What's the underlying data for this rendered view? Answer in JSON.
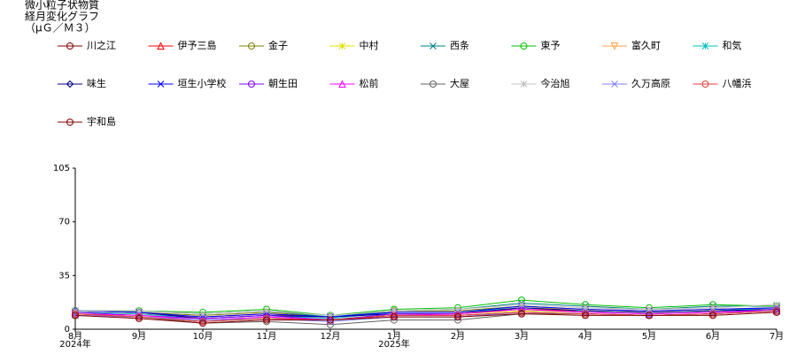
{
  "chart_data": {
    "type": "line",
    "title": [
      "微小粒子状物質",
      "経月変化グラフ",
      "（μＧ／Ｍ３）"
    ],
    "categories": [
      "8月",
      "9月",
      "10月",
      "11月",
      "12月",
      "1月",
      "2月",
      "3月",
      "4月",
      "5月",
      "6月",
      "7月"
    ],
    "category_years": [
      "2024年",
      null,
      null,
      null,
      null,
      "2025年",
      null,
      null,
      null,
      null,
      null,
      null
    ],
    "ylim": [
      0,
      105
    ],
    "yticks": [
      0,
      35,
      70,
      105
    ],
    "grid": false,
    "series": [
      {
        "name": "川之江",
        "color": "#800000",
        "marker": "circle",
        "values": [
          10,
          8,
          5,
          7,
          6,
          9,
          9,
          11,
          10,
          9,
          10,
          12
        ]
      },
      {
        "name": "伊予三島",
        "color": "#ff0000",
        "marker": "triangle",
        "values": [
          11,
          10,
          8,
          10,
          8,
          11,
          11,
          13,
          12,
          11,
          12,
          14
        ]
      },
      {
        "name": "金子",
        "color": "#808000",
        "marker": "circle",
        "values": [
          12,
          11,
          9,
          11,
          8,
          12,
          12,
          15,
          13,
          12,
          13,
          14
        ]
      },
      {
        "name": "中村",
        "color": "#e0e000",
        "marker": "star",
        "values": [
          10,
          9,
          6,
          8,
          6,
          10,
          10,
          12,
          11,
          10,
          11,
          13
        ]
      },
      {
        "name": "西条",
        "color": "#008080",
        "marker": "x",
        "values": [
          12,
          12,
          10,
          12,
          8,
          12,
          13,
          17,
          15,
          13,
          15,
          15
        ]
      },
      {
        "name": "東予",
        "color": "#00c000",
        "marker": "circle",
        "values": [
          12,
          12,
          11,
          13,
          9,
          13,
          14,
          19,
          16,
          14,
          16,
          15
        ]
      },
      {
        "name": "富久町",
        "color": "#ffa040",
        "marker": "down",
        "values": [
          11,
          10,
          8,
          10,
          7,
          11,
          11,
          14,
          13,
          12,
          13,
          14
        ]
      },
      {
        "name": "和気",
        "color": "#00c0c0",
        "marker": "star",
        "values": [
          11,
          10,
          7,
          9,
          7,
          11,
          11,
          14,
          12,
          11,
          12,
          14
        ]
      },
      {
        "name": "味生",
        "color": "#000080",
        "marker": "diamond",
        "values": [
          12,
          11,
          7,
          9,
          8,
          10,
          10,
          14,
          12,
          11,
          12,
          13
        ]
      },
      {
        "name": "垣生小学校",
        "color": "#0000ff",
        "marker": "x",
        "values": [
          12,
          11,
          8,
          10,
          8,
          11,
          11,
          15,
          13,
          12,
          13,
          14
        ]
      },
      {
        "name": "朝生田",
        "color": "#8000ff",
        "marker": "circle",
        "values": [
          11,
          9,
          7,
          9,
          6,
          10,
          10,
          13,
          11,
          10,
          11,
          13
        ]
      },
      {
        "name": "松前",
        "color": "#ff00ff",
        "marker": "triangle",
        "values": [
          10,
          9,
          6,
          8,
          6,
          9,
          10,
          13,
          11,
          10,
          11,
          12
        ]
      },
      {
        "name": "大屋",
        "color": "#606060",
        "marker": "circle",
        "values": [
          9,
          8,
          4,
          5,
          3,
          6,
          6,
          10,
          10,
          9,
          10,
          12
        ]
      },
      {
        "name": "今治旭",
        "color": "#c0c0c0",
        "marker": "star",
        "values": [
          12,
          12,
          10,
          12,
          9,
          12,
          13,
          16,
          14,
          13,
          14,
          16
        ]
      },
      {
        "name": "久万高原",
        "color": "#8080ff",
        "marker": "x",
        "values": [
          9,
          8,
          6,
          7,
          5,
          8,
          8,
          11,
          10,
          9,
          10,
          12
        ]
      },
      {
        "name": "八幡浜",
        "color": "#e04040",
        "marker": "circle",
        "values": [
          10,
          8,
          5,
          7,
          6,
          9,
          9,
          11,
          10,
          9,
          10,
          12
        ]
      },
      {
        "name": "宇和島",
        "color": "#800000",
        "marker": "circle",
        "values": [
          9,
          7,
          4,
          6,
          6,
          8,
          8,
          10,
          9,
          9,
          9,
          11
        ]
      }
    ]
  }
}
